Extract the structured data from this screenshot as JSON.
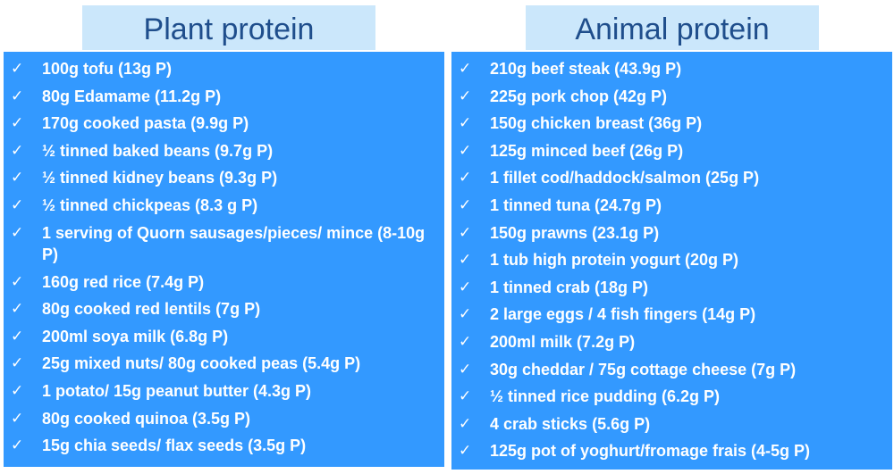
{
  "plant": {
    "title": "Plant protein",
    "items": [
      "100g tofu (13g P)",
      "80g Edamame (11.2g P)",
      "170g cooked pasta (9.9g P)",
      "½ tinned baked beans (9.7g P)",
      "½ tinned kidney beans (9.3g P)",
      "½ tinned chickpeas (8.3 g P)",
      "1 serving of Quorn sausages/pieces/ mince (8-10g P)",
      "160g red rice (7.4g P)",
      "80g cooked red lentils (7g P)",
      "200ml soya milk (6.8g P)",
      "25g mixed nuts/ 80g cooked peas (5.4g P)",
      "1 potato/ 15g peanut butter (4.3g P)",
      "80g cooked quinoa (3.5g P)",
      "15g chia seeds/ flax seeds (3.5g P)"
    ]
  },
  "animal": {
    "title": "Animal protein",
    "items": [
      "210g beef steak (43.9g P)",
      "225g pork chop (42g P)",
      "150g chicken breast (36g P)",
      "125g minced beef (26g P)",
      "1 fillet cod/haddock/salmon (25g P)",
      "1 tinned tuna (24.7g P)",
      "150g prawns (23.1g P)",
      "1 tub high protein yogurt (20g P)",
      "1 tinned crab (18g P)",
      "2 large eggs / 4 fish fingers (14g P)",
      "200ml milk (7.2g P)",
      "30g cheddar / 75g cottage cheese (7g P)",
      "½ tinned rice pudding (6.2g P)",
      "4 crab sticks (5.6g P)",
      "125g pot of yoghurt/fromage frais (4-5g P)"
    ]
  },
  "icons": {
    "check": "✓"
  },
  "colors": {
    "header_bg": "#cbe7fb",
    "header_text": "#1f4e8c",
    "panel_bg": "#3399ff",
    "panel_text": "#ffffff"
  }
}
